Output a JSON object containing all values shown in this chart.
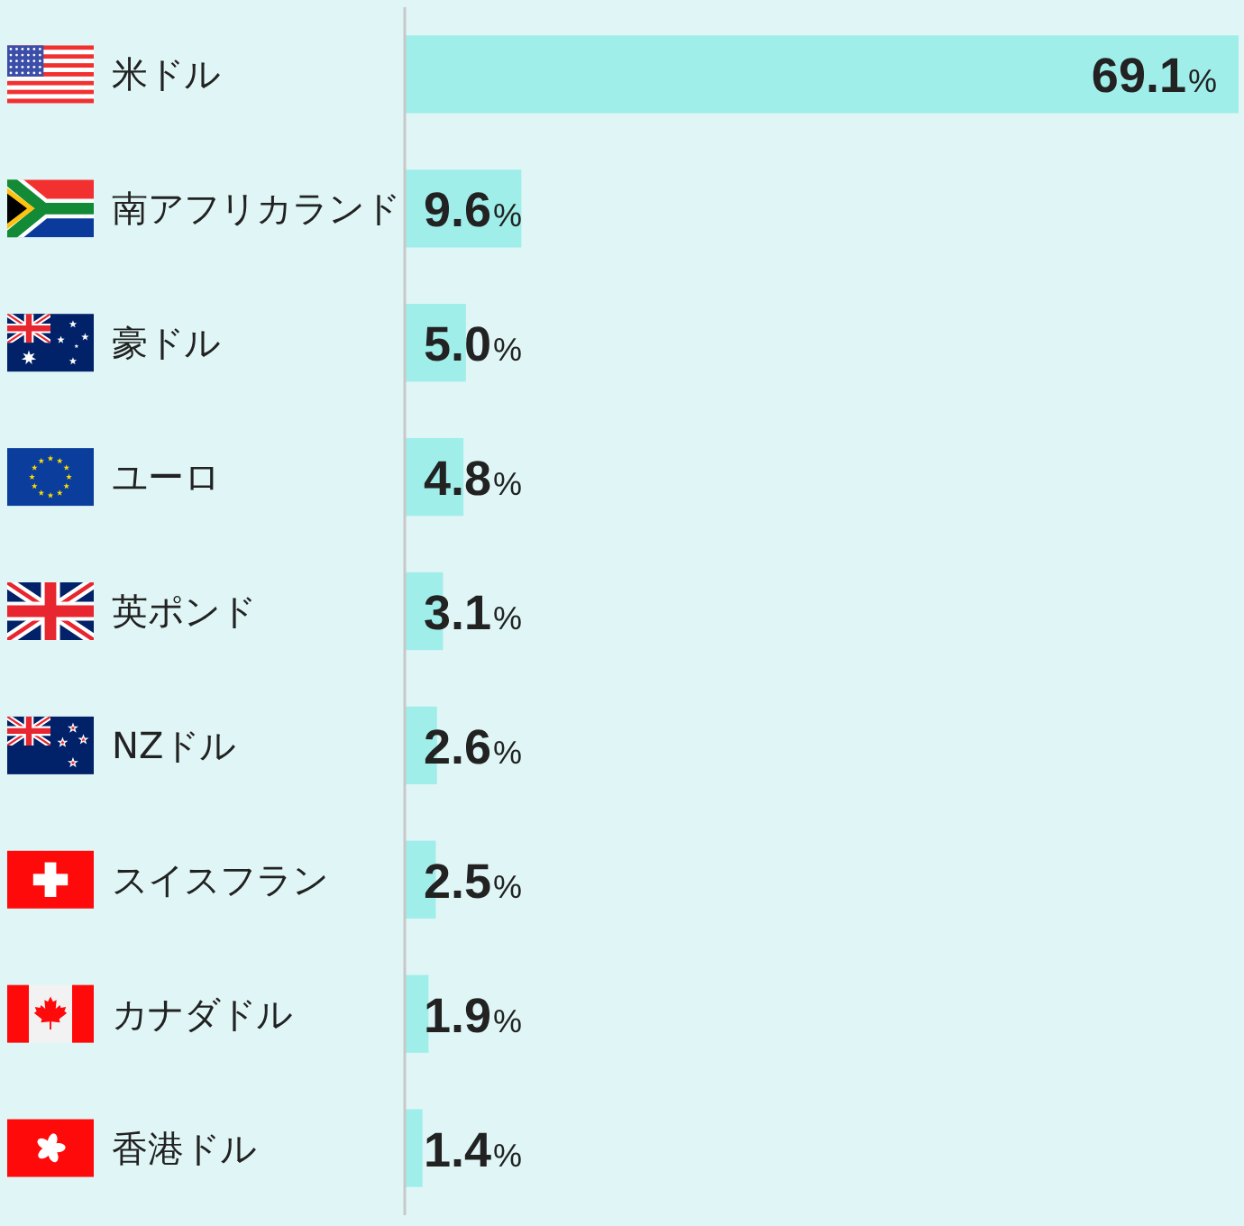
{
  "chart_data": {
    "type": "bar",
    "orientation": "horizontal",
    "categories": [
      "米ドル",
      "南アフリカランド",
      "豪ドル",
      "ユーロ",
      "英ポンド",
      "NZドル",
      "スイスフラン",
      "カナダドル",
      "香港ドル"
    ],
    "values": [
      69.1,
      9.6,
      5.0,
      4.8,
      3.1,
      2.6,
      2.5,
      1.9,
      1.4
    ],
    "color": "#a0eeea",
    "value_labels": [
      "69.1%",
      "9.6%",
      "5.0%",
      "4.8%",
      "3.1%",
      "2.6%",
      "2.5%",
      "1.9%",
      "1.4%"
    ]
  }
}
